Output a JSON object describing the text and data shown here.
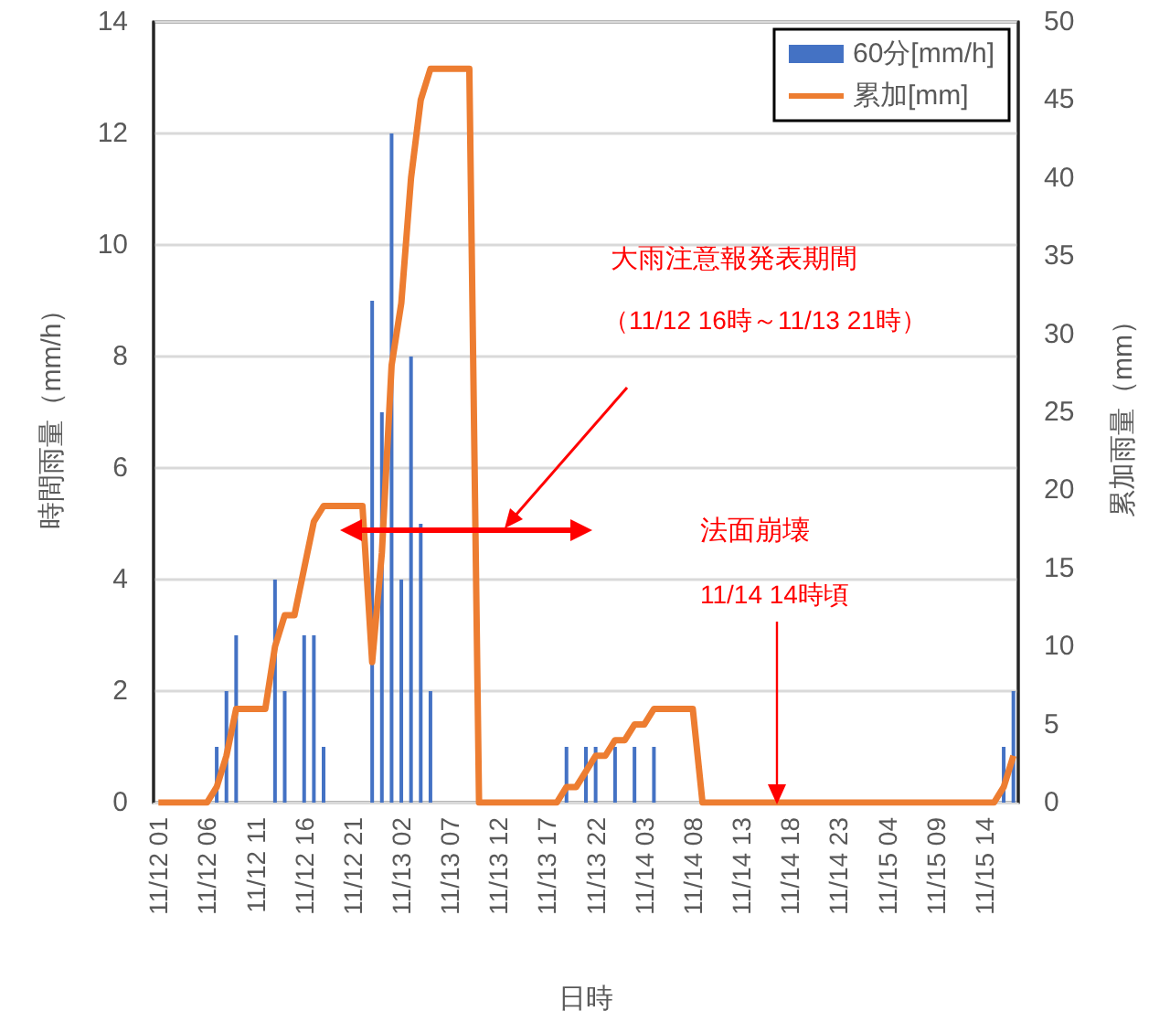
{
  "chart_data": {
    "type": "bar",
    "xlabel": "日時",
    "ylabel": "時間雨量（mm/h）",
    "y2label": "累加雨量（mm）",
    "categories": [
      "11/12 01",
      null,
      null,
      null,
      null,
      "11/12 06",
      null,
      null,
      null,
      null,
      "11/12 11",
      null,
      null,
      null,
      null,
      "11/12 16",
      null,
      null,
      null,
      null,
      "11/12 21",
      null,
      null,
      null,
      null,
      "11/13 02",
      null,
      null,
      null,
      null,
      "11/13 07",
      null,
      null,
      null,
      null,
      "11/13 12",
      null,
      null,
      null,
      null,
      "11/13 17",
      null,
      null,
      null,
      null,
      "11/13 22",
      null,
      null,
      null,
      null,
      "11/14 03",
      null,
      null,
      null,
      null,
      "11/14 08",
      null,
      null,
      null,
      null,
      "11/14 13",
      null,
      null,
      null,
      null,
      "11/14 18",
      null,
      null,
      null,
      null,
      "11/14 23",
      null,
      null,
      null,
      null,
      "11/15 04",
      null,
      null,
      null,
      null,
      "11/15 09",
      null,
      null,
      null,
      null,
      "11/15 14",
      null,
      null,
      null
    ],
    "series": [
      {
        "name": "60分[mm/h]",
        "color": "#4472c4",
        "values": [
          0,
          0,
          0,
          0,
          0,
          0,
          1,
          2,
          3,
          0,
          0,
          0,
          4,
          2,
          0,
          3,
          3,
          1,
          0,
          0,
          0,
          0,
          9,
          7,
          12,
          4,
          8,
          5,
          2,
          0,
          0,
          0,
          0,
          0,
          0,
          0,
          0,
          0,
          0,
          0,
          0,
          0,
          1,
          0,
          1,
          1,
          0,
          1,
          0,
          1,
          0,
          1,
          0,
          0,
          0,
          0,
          0,
          0,
          0,
          0,
          0,
          0,
          0,
          0,
          0,
          0,
          0,
          0,
          0,
          0,
          0,
          0,
          0,
          0,
          0,
          0,
          0,
          0,
          0,
          0,
          0,
          0,
          0,
          0,
          0,
          0,
          0,
          1,
          2
        ]
      },
      {
        "name": "累加[mm]",
        "type": "line",
        "axis": "y2",
        "color": "#ed7d31",
        "values": [
          0,
          0,
          0,
          0,
          0,
          0,
          1,
          3,
          6,
          6,
          6,
          6,
          10,
          12,
          12,
          15,
          18,
          19,
          19,
          19,
          19,
          19,
          9,
          16,
          28,
          32,
          40,
          45,
          47,
          47,
          47,
          47,
          47,
          0,
          0,
          0,
          0,
          0,
          0,
          0,
          0,
          0,
          1,
          1,
          2,
          3,
          3,
          4,
          4,
          5,
          5,
          6,
          6,
          6,
          6,
          6,
          0,
          0,
          0,
          0,
          0,
          0,
          0,
          0,
          0,
          0,
          0,
          0,
          0,
          0,
          0,
          0,
          0,
          0,
          0,
          0,
          0,
          0,
          0,
          0,
          0,
          0,
          0,
          0,
          0,
          0,
          0,
          1,
          3
        ]
      }
    ],
    "ylim": [
      0,
      14
    ],
    "yticks": [
      0,
      2,
      4,
      6,
      8,
      10,
      12,
      14
    ],
    "y2lim": [
      0,
      50
    ],
    "y2ticks": [
      0,
      5,
      10,
      15,
      20,
      25,
      30,
      35,
      40,
      45,
      50
    ],
    "grid": "y",
    "legend": "top right",
    "marker": "none",
    "line_style": "solid",
    "annotations": [
      "大雨注意報発表期間",
      "（11/12 16時～11/13 21時）",
      "法面崩壊",
      "11/14 14時頃"
    ]
  }
}
